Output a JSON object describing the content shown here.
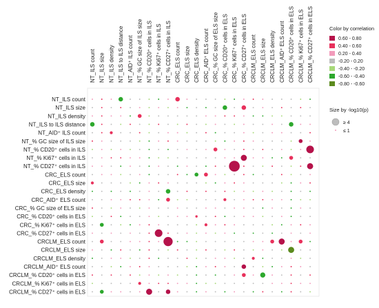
{
  "chart_data": {
    "type": "scatter",
    "subtype": "correlation-bubble-matrix",
    "columns": [
      "NT_ILS count",
      "NT_ILS size",
      "NT_ILS density",
      "NT_ILS to ILS distance",
      "NT_AID⁺ ILS count",
      "NT_% GC size of ILS size",
      "NT_% CD20⁺ cells in ILS",
      "NT_% Ki67⁺ cells in ILS",
      "NT_% CD27⁺ cells in ILS",
      "CRC_ELS count",
      "CRC_ELS size",
      "CRC_ELS density",
      "CRC_AID⁺ ELS count",
      "CRC_% GC size of ELS size",
      "CRC_% CD20⁺ cells in ELS",
      "CRC_% Ki67⁺ cells in ELS",
      "CRC_% CD27⁺ cells in ELS",
      "CRCLM_ELS count",
      "CRCLM_ELS size",
      "CRCLM_ELS density",
      "CRCLM_AID⁺ ELS count",
      "CRCLM_% CD20⁺ cells in ELS",
      "CRCLM_% Ki67⁺ cells in ELS",
      "CRCLM_% CD27⁺ cells in ELS"
    ],
    "rows": [
      "NT_ILS  count",
      "NT_ILS  size",
      "NT_ILS density",
      "NT_ILS to ILS distance",
      "NT_AID⁺ ILS count",
      "NT_% GC size of ILS size",
      "NT_% CD20⁺ cells in ILS",
      "NT_% Ki67⁺ cells in ILS",
      "NT_% CD27⁺ cells in ILS",
      "CRC_ELS count",
      "CRC_ELS size",
      "CRC_ELS density",
      "CRC_AID⁺ ELS count",
      "CRC_% GC size of ELS size",
      "CRC_% CD20⁺ cells in ELS",
      "CRC_% Ki67⁺ cells in ELS",
      "CRC_% CD27⁺ cells in ELS",
      "CRCLM_ELS count",
      "CRCLM_ELS size",
      "CRCLM_ELS density",
      "CRCLM_AID⁺ ELS count",
      "CRCLM_% CD20⁺ cells in ELS",
      "CRCLM_% Ki67⁺ cells in ELS",
      "CRCLM_% CD27⁺ cells in ELS"
    ],
    "correlation_bins": [
      {
        "range": "0.60 - 0.80",
        "color": "#b5124a"
      },
      {
        "range": "0.40 - 0.60",
        "color": "#e8315c"
      },
      {
        "range": "0.20 - 0.40",
        "color": "#f29bbb"
      },
      {
        "range": "-0.20 - 0.20",
        "color": "#bdbdbd"
      },
      {
        "range": "-0.40 - -0.20",
        "color": "#a8d97a"
      },
      {
        "range": "-0.60 - -0.40",
        "color": "#2da82d"
      },
      {
        "range": "-0.80 - -0.60",
        "color": "#5c8a1e"
      }
    ],
    "legend_color_title": "Color by correlation",
    "legend_color_labels": [
      "0.60 - 0.80",
      "0.40 - 0.60",
      "0.20 - 0.40",
      "-0.20 - 0.20",
      "-0.40 - -0.20",
      "-0.60 - -0.40",
      "-0.80 - -0.60"
    ],
    "legend_size_title": "Size by -log10(p)",
    "legend_size_labels": [
      "≥ 4",
      "≤ 1"
    ],
    "size_range": [
      1,
      4
    ],
    "highlighted_cells": [
      {
        "row": 0,
        "col": 3,
        "corr": -0.5,
        "size": 2
      },
      {
        "row": 0,
        "col": 9,
        "corr": 0.5,
        "size": 2
      },
      {
        "row": 1,
        "col": 14,
        "corr": -0.5,
        "size": 2
      },
      {
        "row": 1,
        "col": 16,
        "corr": 0.5,
        "size": 2
      },
      {
        "row": 2,
        "col": 5,
        "corr": 0.5,
        "size": 1.8
      },
      {
        "row": 3,
        "col": 0,
        "corr": -0.5,
        "size": 2
      },
      {
        "row": 3,
        "col": 21,
        "corr": -0.5,
        "size": 2
      },
      {
        "row": 4,
        "col": 2,
        "corr": 0.5,
        "size": 1.5
      },
      {
        "row": 5,
        "col": 22,
        "corr": 0.7,
        "size": 1.8
      },
      {
        "row": 6,
        "col": 13,
        "corr": 0.5,
        "size": 1.8
      },
      {
        "row": 6,
        "col": 23,
        "corr": 0.7,
        "size": 3
      },
      {
        "row": 7,
        "col": 16,
        "corr": 0.7,
        "size": 2.5
      },
      {
        "row": 7,
        "col": 21,
        "corr": 0.5,
        "size": 1.8
      },
      {
        "row": 8,
        "col": 15,
        "corr": 0.7,
        "size": 4
      },
      {
        "row": 8,
        "col": 23,
        "corr": 0.7,
        "size": 2.5
      },
      {
        "row": 9,
        "col": 11,
        "corr": -0.5,
        "size": 1.8
      },
      {
        "row": 9,
        "col": 12,
        "corr": 0.5,
        "size": 1.8
      },
      {
        "row": 10,
        "col": 0,
        "corr": 0.5,
        "size": 1.5
      },
      {
        "row": 11,
        "col": 8,
        "corr": -0.5,
        "size": 2
      },
      {
        "row": 12,
        "col": 8,
        "corr": 0.5,
        "size": 1.8
      },
      {
        "row": 12,
        "col": 14,
        "corr": 0.5,
        "size": 1.5
      },
      {
        "row": 14,
        "col": 11,
        "corr": 0.5,
        "size": 1.3
      },
      {
        "row": 15,
        "col": 1,
        "corr": -0.5,
        "size": 1.8
      },
      {
        "row": 15,
        "col": 12,
        "corr": 0.5,
        "size": 1.5
      },
      {
        "row": 16,
        "col": 7,
        "corr": 0.7,
        "size": 3
      },
      {
        "row": 17,
        "col": 1,
        "corr": 0.5,
        "size": 1.8
      },
      {
        "row": 17,
        "col": 8,
        "corr": 0.7,
        "size": 3.5
      },
      {
        "row": 17,
        "col": 19,
        "corr": 0.5,
        "size": 1.8
      },
      {
        "row": 17,
        "col": 20,
        "corr": 0.7,
        "size": 2.5
      },
      {
        "row": 17,
        "col": 22,
        "corr": 0.5,
        "size": 1.8
      },
      {
        "row": 18,
        "col": 21,
        "corr": -0.7,
        "size": 2.5
      },
      {
        "row": 19,
        "col": 17,
        "corr": 0.5,
        "size": 1.5
      },
      {
        "row": 20,
        "col": 16,
        "corr": 0.7,
        "size": 2
      },
      {
        "row": 21,
        "col": 16,
        "corr": 0.5,
        "size": 1.8
      },
      {
        "row": 21,
        "col": 18,
        "corr": -0.5,
        "size": 2.2
      },
      {
        "row": 22,
        "col": 5,
        "corr": 0.5,
        "size": 1.5
      },
      {
        "row": 23,
        "col": 1,
        "corr": -0.5,
        "size": 1.8
      },
      {
        "row": 23,
        "col": 6,
        "corr": 0.7,
        "size": 2.5
      },
      {
        "row": 23,
        "col": 8,
        "corr": 0.7,
        "size": 2
      }
    ]
  }
}
